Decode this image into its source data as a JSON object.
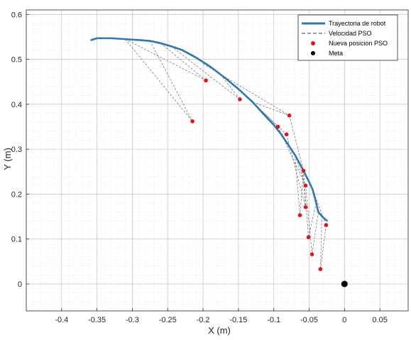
{
  "chart_data": {
    "type": "line",
    "xlabel": "X (m)",
    "ylabel": "Y (m)",
    "xlim": [
      -0.45,
      0.09
    ],
    "ylim": [
      -0.06,
      0.61
    ],
    "xticks": [
      -0.4,
      -0.35,
      -0.3,
      -0.25,
      -0.2,
      -0.15,
      -0.1,
      -0.05,
      0,
      0.05
    ],
    "xtick_labels": [
      "-0.4",
      "-0.35",
      "-0.3",
      "-0.25",
      "-0.2",
      "-0.15",
      "-0.1",
      "-0.05",
      "0",
      "0.05"
    ],
    "yticks": [
      0,
      0.1,
      0.2,
      0.3,
      0.4,
      0.5,
      0.6
    ],
    "ytick_labels": [
      "0",
      "0.1",
      "0.2",
      "0.3",
      "0.4",
      "0.5",
      "0.6"
    ],
    "grid": "major and minor",
    "legend_position": "top-right",
    "legend": [
      {
        "label": "Trayectoria de robot",
        "style": "line",
        "color": "#2e78ad"
      },
      {
        "label": "Velocidad PSO",
        "style": "dashed",
        "color": "#000000"
      },
      {
        "label": "Nueva posicion PSO",
        "style": "marker",
        "color": "#e8111b"
      },
      {
        "label": "Meta",
        "style": "marker",
        "color": "#000000"
      }
    ],
    "series": [
      {
        "name": "Trayectoria de robot",
        "kind": "line",
        "color": "#2e78ad",
        "x": [
          -0.358,
          -0.35,
          -0.33,
          -0.31,
          -0.29,
          -0.275,
          -0.26,
          -0.245,
          -0.23,
          -0.21,
          -0.19,
          -0.17,
          -0.15,
          -0.13,
          -0.115,
          -0.1,
          -0.09,
          -0.08,
          -0.07,
          -0.06,
          -0.05,
          -0.045,
          -0.04,
          -0.037,
          -0.032,
          -0.028,
          -0.025
        ],
        "y": [
          0.543,
          0.547,
          0.547,
          0.545,
          0.543,
          0.541,
          0.536,
          0.529,
          0.521,
          0.504,
          0.484,
          0.46,
          0.434,
          0.405,
          0.379,
          0.354,
          0.334,
          0.311,
          0.287,
          0.258,
          0.227,
          0.21,
          0.18,
          0.16,
          0.151,
          0.145,
          0.141
        ]
      },
      {
        "name": "Nueva posicion PSO",
        "kind": "scatter",
        "color": "#e8111b",
        "x": [
          -0.215,
          -0.196,
          -0.148,
          -0.078,
          -0.094,
          -0.082,
          -0.058,
          -0.055,
          -0.055,
          -0.063,
          -0.026,
          -0.051,
          -0.046,
          -0.034
        ],
        "y": [
          0.362,
          0.453,
          0.411,
          0.375,
          0.35,
          0.333,
          0.252,
          0.219,
          0.171,
          0.153,
          0.131,
          0.104,
          0.066,
          0.033
        ]
      },
      {
        "name": "Meta",
        "kind": "scatter",
        "color": "#000000",
        "x": [
          0
        ],
        "y": [
          0
        ]
      }
    ],
    "pso_velocity_segments": [
      [
        [
          -0.31,
          0.545
        ],
        [
          -0.215,
          0.362
        ]
      ],
      [
        [
          -0.275,
          0.541
        ],
        [
          -0.215,
          0.362
        ]
      ],
      [
        [
          -0.31,
          0.545
        ],
        [
          -0.196,
          0.453
        ]
      ],
      [
        [
          -0.26,
          0.536
        ],
        [
          -0.196,
          0.453
        ]
      ],
      [
        [
          -0.245,
          0.529
        ],
        [
          -0.148,
          0.411
        ]
      ],
      [
        [
          -0.175,
          0.466
        ],
        [
          -0.148,
          0.411
        ]
      ],
      [
        [
          -0.2,
          0.49
        ],
        [
          -0.078,
          0.375
        ]
      ],
      [
        [
          -0.13,
          0.405
        ],
        [
          -0.078,
          0.375
        ]
      ],
      [
        [
          -0.14,
          0.42
        ],
        [
          -0.094,
          0.35
        ]
      ],
      [
        [
          -0.12,
          0.39
        ],
        [
          -0.082,
          0.333
        ]
      ],
      [
        [
          -0.09,
          0.334
        ],
        [
          -0.082,
          0.333
        ]
      ],
      [
        [
          -0.078,
          0.375
        ],
        [
          -0.058,
          0.252
        ]
      ],
      [
        [
          -0.08,
          0.311
        ],
        [
          -0.058,
          0.252
        ]
      ],
      [
        [
          -0.094,
          0.35
        ],
        [
          -0.055,
          0.219
        ]
      ],
      [
        [
          -0.07,
          0.287
        ],
        [
          -0.055,
          0.219
        ]
      ],
      [
        [
          -0.082,
          0.333
        ],
        [
          -0.055,
          0.171
        ]
      ],
      [
        [
          -0.06,
          0.258
        ],
        [
          -0.055,
          0.171
        ]
      ],
      [
        [
          -0.07,
          0.287
        ],
        [
          -0.063,
          0.153
        ]
      ],
      [
        [
          -0.058,
          0.252
        ],
        [
          -0.063,
          0.153
        ]
      ],
      [
        [
          -0.045,
          0.21
        ],
        [
          -0.026,
          0.131
        ]
      ],
      [
        [
          -0.058,
          0.252
        ],
        [
          -0.051,
          0.104
        ]
      ],
      [
        [
          -0.04,
          0.18
        ],
        [
          -0.051,
          0.104
        ]
      ],
      [
        [
          -0.055,
          0.219
        ],
        [
          -0.046,
          0.066
        ]
      ],
      [
        [
          -0.037,
          0.16
        ],
        [
          -0.046,
          0.066
        ]
      ],
      [
        [
          -0.026,
          0.131
        ],
        [
          -0.034,
          0.033
        ]
      ],
      [
        [
          -0.032,
          0.151
        ],
        [
          -0.034,
          0.033
        ]
      ]
    ]
  }
}
